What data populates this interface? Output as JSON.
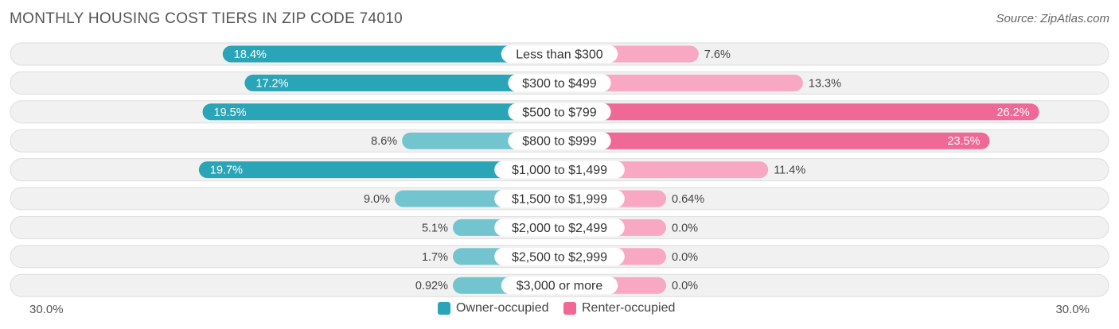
{
  "title": "MONTHLY HOUSING COST TIERS IN ZIP CODE 74010",
  "source": "Source: ZipAtlas.com",
  "colors": {
    "owner_strong": "#2aa5b8",
    "owner_light": "#72c4ce",
    "renter_strong": "#f06895",
    "renter_light": "#f8a8c2",
    "row_bg": "#f1f1f1",
    "row_border": "#dddddd"
  },
  "legend": {
    "owner": "Owner-occupied",
    "renter": "Renter-occupied"
  },
  "axis": {
    "left_label": "30.0%",
    "right_label": "30.0%"
  },
  "chart_data": {
    "type": "bar",
    "orientation": "horizontal-diverging",
    "title": "MONTHLY HOUSING COST TIERS IN ZIP CODE 74010",
    "xlim": [
      -30,
      30
    ],
    "categories": [
      "Less than $300",
      "$300 to $499",
      "$500 to $799",
      "$800 to $999",
      "$1,000 to $1,499",
      "$1,500 to $1,999",
      "$2,000 to $2,499",
      "$2,500 to $2,999",
      "$3,000 or more"
    ],
    "series": [
      {
        "name": "Owner-occupied",
        "values": [
          18.4,
          17.2,
          19.5,
          8.6,
          19.7,
          9.0,
          5.1,
          1.7,
          0.92
        ],
        "labels": [
          "18.4%",
          "17.2%",
          "19.5%",
          "8.6%",
          "19.7%",
          "9.0%",
          "5.1%",
          "1.7%",
          "0.92%"
        ]
      },
      {
        "name": "Renter-occupied",
        "values": [
          7.6,
          13.3,
          26.2,
          23.5,
          11.4,
          0.64,
          0.0,
          0.0,
          0.0
        ],
        "labels": [
          "7.6%",
          "13.3%",
          "26.2%",
          "23.5%",
          "11.4%",
          "0.64%",
          "0.0%",
          "0.0%",
          "0.0%"
        ]
      }
    ],
    "legend": "bottom-center",
    "grid": false
  }
}
